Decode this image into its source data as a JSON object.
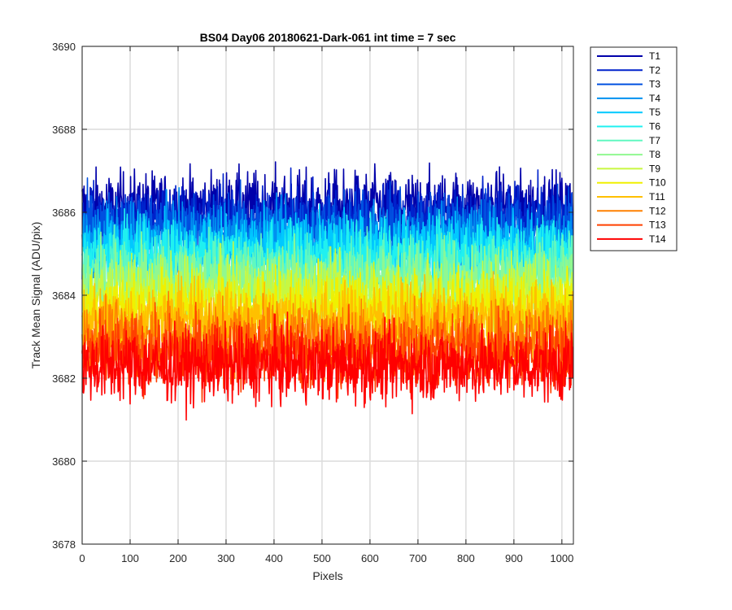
{
  "chart_data": {
    "type": "line",
    "title": "BS04 Day06 20180621-Dark-061 int time = 7 sec",
    "xlabel": "Pixels",
    "ylabel": "Track Mean Signal (ADU/pix)",
    "xlim": [
      0,
      1024
    ],
    "ylim": [
      3678,
      3690
    ],
    "xticks": [
      0,
      100,
      200,
      300,
      400,
      500,
      600,
      700,
      800,
      900,
      1000
    ],
    "yticks": [
      3678,
      3680,
      3682,
      3684,
      3686,
      3688,
      3690
    ],
    "grid": true,
    "legend_position": "outside-top-right",
    "n_pixels": 1024,
    "series": [
      {
        "name": "T1",
        "color": "#0000AA",
        "mean": 3686.1,
        "noise_amp": 0.8
      },
      {
        "name": "T2",
        "color": "#0022CC",
        "mean": 3685.8,
        "noise_amp": 0.8
      },
      {
        "name": "T3",
        "color": "#0050E0",
        "mean": 3685.6,
        "noise_amp": 0.8
      },
      {
        "name": "T4",
        "color": "#0090F0",
        "mean": 3685.3,
        "noise_amp": 0.8
      },
      {
        "name": "T5",
        "color": "#00C8FF",
        "mean": 3685.1,
        "noise_amp": 0.8
      },
      {
        "name": "T6",
        "color": "#20F0F0",
        "mean": 3684.9,
        "noise_amp": 0.8
      },
      {
        "name": "T7",
        "color": "#60F8C0",
        "mean": 3684.6,
        "noise_amp": 0.8
      },
      {
        "name": "T8",
        "color": "#90F890",
        "mean": 3684.3,
        "noise_amp": 0.8
      },
      {
        "name": "T9",
        "color": "#C8F840",
        "mean": 3684.0,
        "noise_amp": 0.8
      },
      {
        "name": "T10",
        "color": "#F0F000",
        "mean": 3683.7,
        "noise_amp": 0.8
      },
      {
        "name": "T11",
        "color": "#FFC000",
        "mean": 3683.4,
        "noise_amp": 0.8
      },
      {
        "name": "T12",
        "color": "#FF8000",
        "mean": 3683.0,
        "noise_amp": 0.8
      },
      {
        "name": "T13",
        "color": "#FF4000",
        "mean": 3682.6,
        "noise_amp": 0.8
      },
      {
        "name": "T14",
        "color": "#FF0000",
        "mean": 3682.3,
        "noise_amp": 0.8
      }
    ]
  }
}
